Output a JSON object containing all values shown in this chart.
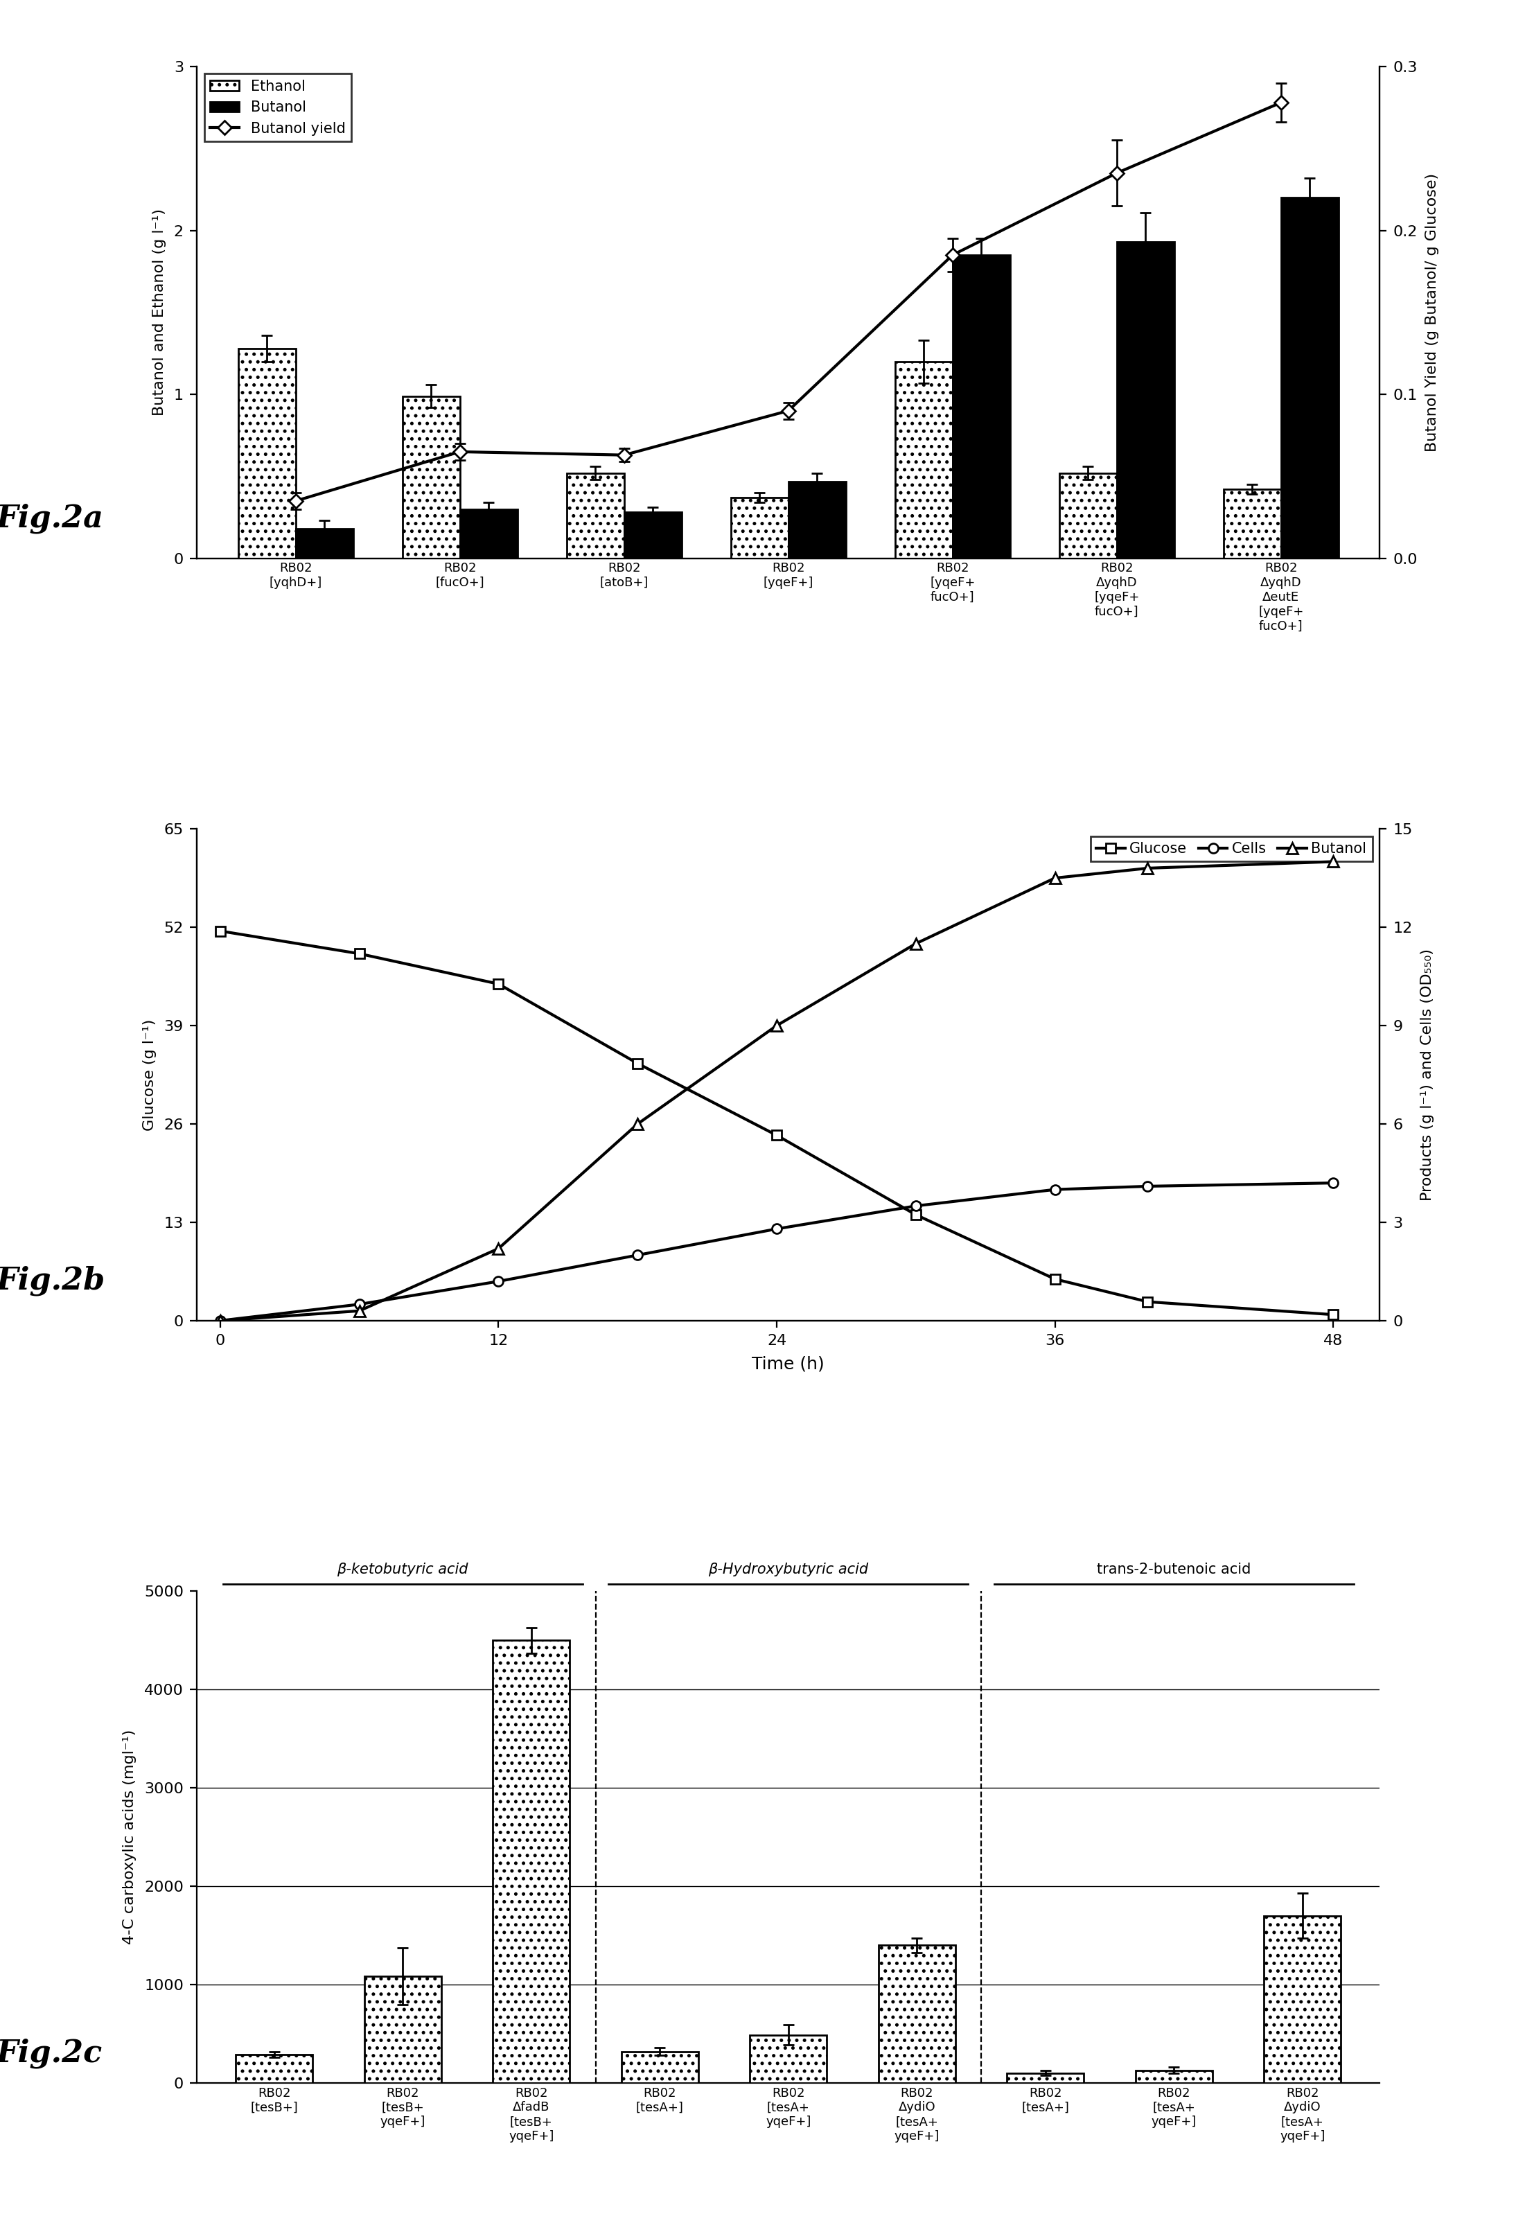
{
  "fig2a": {
    "categories": [
      "RB02\n[yqhD+]",
      "RB02\n[fucO+]",
      "RB02\n[atoB+]",
      "RB02\n[yqeF+]",
      "RB02\n[yqeF+\nfucO+]",
      "RB02\nΔyqhD\n[yqeF+\nfucO+]",
      "RB02\nΔyqhD\nΔeutE\n[yqeF+\nfucO+]"
    ],
    "ethanol": [
      1.28,
      0.99,
      0.52,
      0.37,
      1.2,
      0.52,
      0.42
    ],
    "ethanol_err": [
      0.08,
      0.07,
      0.04,
      0.03,
      0.13,
      0.04,
      0.03
    ],
    "butanol": [
      0.18,
      0.3,
      0.28,
      0.47,
      1.85,
      1.93,
      2.2
    ],
    "butanol_err": [
      0.05,
      0.04,
      0.03,
      0.05,
      0.1,
      0.18,
      0.12
    ],
    "yield_vals": [
      0.035,
      0.065,
      0.063,
      0.09,
      0.185,
      0.235,
      0.278
    ],
    "yield_err": [
      0.005,
      0.005,
      0.004,
      0.005,
      0.01,
      0.02,
      0.012
    ],
    "ylim_left": [
      0,
      3
    ],
    "ylim_right": [
      0,
      0.3
    ],
    "ylabel_left": "Butanol and Ethanol (g l⁻¹)",
    "ylabel_right": "Butanol Yield (g Butanol/ g Glucose)",
    "fig_label": "Fig.2a"
  },
  "fig2b": {
    "time": [
      0,
      6,
      12,
      18,
      24,
      30,
      36,
      40,
      48
    ],
    "glucose": [
      51.5,
      48.5,
      44.5,
      34.0,
      24.5,
      14.0,
      5.5,
      2.5,
      0.8
    ],
    "cells": [
      0.0,
      0.5,
      1.2,
      2.0,
      2.8,
      3.5,
      4.0,
      4.1,
      4.2
    ],
    "butanol": [
      0.0,
      0.3,
      2.2,
      6.0,
      9.0,
      11.5,
      13.5,
      13.8,
      14.0
    ],
    "ylim_left": [
      0,
      65
    ],
    "ylim_right": [
      0,
      15
    ],
    "yticks_left": [
      0,
      13,
      26,
      39,
      52,
      65
    ],
    "yticks_right": [
      0,
      3,
      6,
      9,
      12,
      15
    ],
    "ylabel_left": "Glucose (g l⁻¹)",
    "ylabel_right": "Products (g l⁻¹) and Cells (OD₅₅₀)",
    "xlabel": "Time (h)",
    "xticks": [
      0,
      12,
      24,
      36,
      48
    ],
    "fig_label": "Fig.2b"
  },
  "fig2c": {
    "categories": [
      "RB02\n[tesB+]",
      "RB02\n[tesB+\nyqeF+]",
      "RB02\nΔfadB\n[tesB+\nyqeF+]",
      "RB02\n[tesA+]",
      "RB02\n[tesA+\nyqeF+]",
      "RB02\nΔydiO\n[tesA+\nyqeF+]",
      "RB02\n[tesA+]",
      "RB02\n[tesA+\nyqeF+]",
      "RB02\nΔydiO\n[tesA+\nyqeF+]"
    ],
    "values": [
      290,
      1085,
      4500,
      320,
      490,
      1400,
      100,
      130,
      1700
    ],
    "errors": [
      30,
      290,
      130,
      40,
      100,
      75,
      25,
      30,
      230
    ],
    "ylim": [
      0,
      5000
    ],
    "yticks": [
      0,
      1000,
      2000,
      3000,
      4000,
      5000
    ],
    "ylabel": "4-C carboxylic acids (mgl⁻¹)",
    "group_labels": [
      "β-ketobutyric acid",
      "β-Hydroxybutyric acid",
      "trans-2-butenoic acid"
    ],
    "group_centers": [
      1.0,
      4.0,
      7.0
    ],
    "group_sep": [
      2.5,
      5.5
    ],
    "fig_label": "Fig.2c"
  }
}
